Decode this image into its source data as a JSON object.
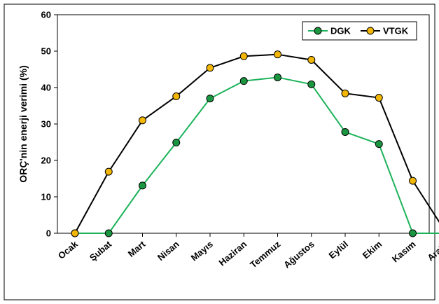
{
  "chart_data": {
    "type": "line",
    "categories": [
      "Ocak",
      "Şubat",
      "Mart",
      "Nisan",
      "Mayıs",
      "Haziran",
      "Temmuz",
      "Ağustos",
      "Eylül",
      "Ekim",
      "Kasım",
      "Aralık"
    ],
    "series": [
      {
        "name": "DGK",
        "color": "#1db35a",
        "marker_fill": "#1a9641",
        "values": [
          0,
          0,
          13.1,
          24.9,
          37.0,
          41.8,
          42.8,
          40.9,
          27.8,
          24.5,
          0,
          0
        ]
      },
      {
        "name": "VTGK",
        "color": "#000000",
        "marker_fill": "#f2b705",
        "values": [
          0,
          16.9,
          31.0,
          37.6,
          45.4,
          48.6,
          49.1,
          47.6,
          38.4,
          37.2,
          14.4,
          0
        ]
      }
    ],
    "title": "",
    "xlabel": "",
    "ylabel": "ORÇ'nin enerji verimi (%)",
    "ylim": [
      0,
      60
    ],
    "yticks": [
      0,
      10,
      20,
      30,
      40,
      50,
      60
    ],
    "grid": false,
    "legend_position": "top-right"
  }
}
